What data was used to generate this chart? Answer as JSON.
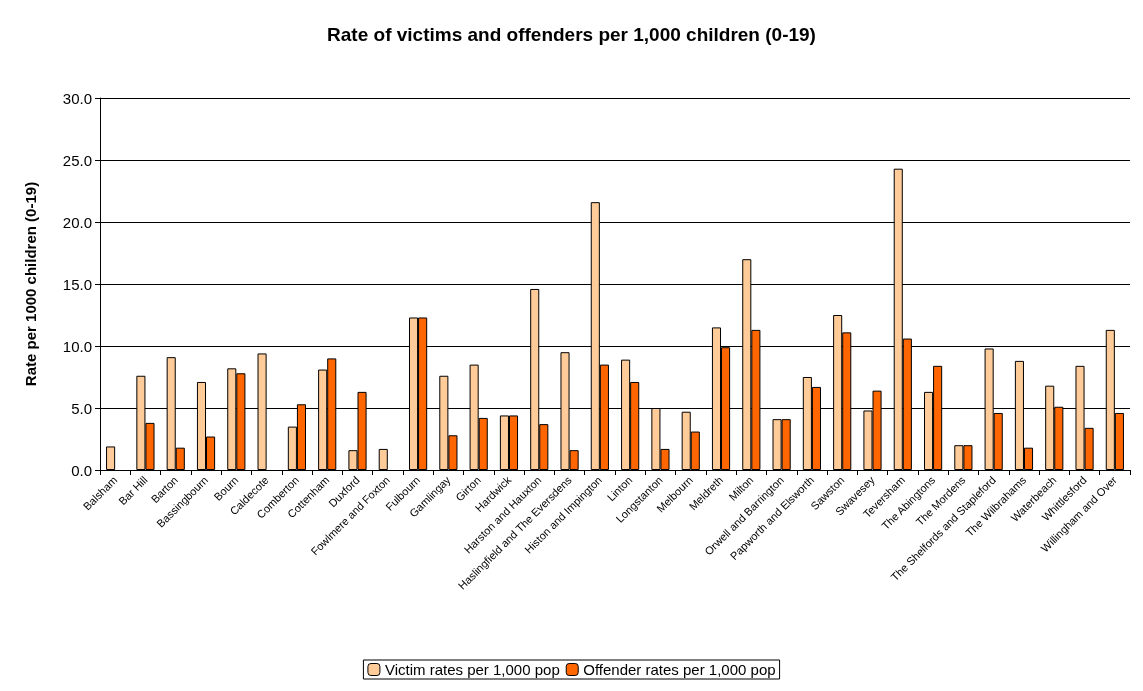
{
  "chart_data": {
    "type": "bar",
    "title": "Rate of victims and offenders per 1,000 children (0-19)",
    "ylabel": "Rate per 1000 children (0-19)",
    "categories": [
      "Balsham",
      "Bar Hill",
      "Barton",
      "Bassingbourn",
      "Bourn",
      "Caldecote",
      "Comberton",
      "Cottenham",
      "Duxford",
      "Fowlmere and Foxton",
      "Fulbourn",
      "Gamlingay",
      "Girton",
      "Hardwick",
      "Harston and Hauxton",
      "Haslingfield and The Eversdens",
      "Histon and Impington",
      "Linton",
      "Longstanton",
      "Melbourn",
      "Meldreth",
      "Milton",
      "Orwell and Barrington",
      "Papworth and Elsworth",
      "Sawston",
      "Swavesey",
      "Teversham",
      "The Abingtons",
      "The Mordens",
      "The Shelfords and Stapleford",
      "The Wilbrahams",
      "Waterbeach",
      "Whittlesford",
      "Willingham and Over"
    ],
    "series": [
      {
        "name": "Victim rates per 1,000 pop",
        "color": "#ffcc99",
        "values": [
          1.9,
          7.6,
          9.1,
          7.1,
          8.2,
          9.4,
          3.5,
          8.1,
          1.6,
          1.7,
          12.3,
          7.6,
          8.5,
          4.4,
          14.6,
          9.5,
          21.6,
          8.9,
          5.0,
          4.7,
          11.5,
          17.0,
          4.1,
          7.5,
          12.5,
          4.8,
          24.3,
          6.3,
          2.0,
          9.8,
          8.8,
          6.8,
          8.4,
          11.3
        ]
      },
      {
        "name": "Offender rates per 1,000 pop",
        "color": "#ff6600",
        "values": [
          null,
          3.8,
          1.8,
          2.7,
          7.8,
          null,
          5.3,
          9.0,
          6.3,
          null,
          12.3,
          2.8,
          4.2,
          4.4,
          3.7,
          1.6,
          8.5,
          7.1,
          1.7,
          3.1,
          9.9,
          11.3,
          4.1,
          6.7,
          11.1,
          6.4,
          10.6,
          8.4,
          2.0,
          4.6,
          1.8,
          5.1,
          3.4,
          4.6
        ]
      }
    ],
    "ylim": [
      0,
      30
    ],
    "yticks": [
      {
        "value": 0,
        "label": "0.0"
      },
      {
        "value": 5,
        "label": "5.0"
      },
      {
        "value": 10,
        "label": "10.0"
      },
      {
        "value": 15,
        "label": "15.0"
      },
      {
        "value": 20,
        "label": "20.0"
      },
      {
        "value": 25,
        "label": "25.0"
      },
      {
        "value": 30,
        "label": "30.0"
      }
    ],
    "grid": "y",
    "legend": "bottom"
  }
}
